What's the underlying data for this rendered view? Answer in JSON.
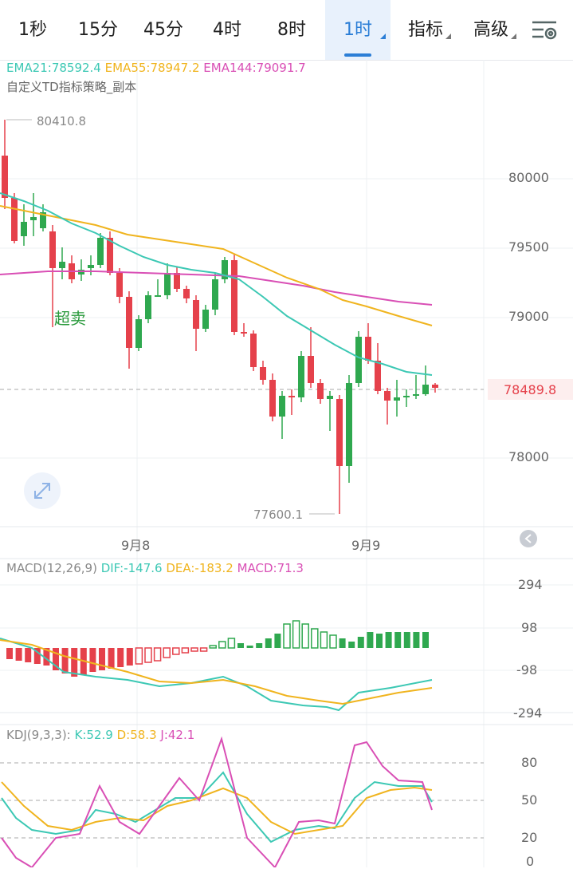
{
  "tabs": [
    {
      "label": "1秒",
      "active": false,
      "dropdown": false
    },
    {
      "label": "15分",
      "active": false,
      "dropdown": false
    },
    {
      "label": "45分",
      "active": false,
      "dropdown": false
    },
    {
      "label": "4时",
      "active": false,
      "dropdown": false
    },
    {
      "label": "8时",
      "active": false,
      "dropdown": false
    },
    {
      "label": "1时",
      "active": true,
      "dropdown": true
    },
    {
      "label": "指标",
      "active": false,
      "dropdown": true
    },
    {
      "label": "高级",
      "active": false,
      "dropdown": true
    }
  ],
  "settings_icon": "settings-sliders-icon",
  "main_chart": {
    "ema21": "EMA21:78592.4",
    "ema55": "EMA55:78947.2",
    "ema144": "EMA144:79091.7",
    "strategy": "自定义TD指标策略_副本",
    "high_label": "80410.8",
    "low_label": "77600.1",
    "oversold_label": "超卖",
    "current_price": "78489.8",
    "y_ticks": [
      "80000",
      "79500",
      "79000",
      "78000"
    ],
    "x_ticks": [
      "9月8",
      "9月9"
    ]
  },
  "macd": {
    "title": "MACD(12,26,9)",
    "dif": "DIF:-147.6",
    "dea": "DEA:-183.2",
    "macd": "MACD:71.3",
    "y_ticks": [
      "294",
      "98",
      "-98",
      "-294"
    ]
  },
  "kdj": {
    "title": "KDJ(9,3,3):",
    "k": "K:52.9",
    "d": "D:58.3",
    "j": "J:42.1",
    "y_ticks": [
      "80",
      "50",
      "20",
      "0"
    ]
  },
  "colors": {
    "up": "#2fa84f",
    "down": "#e5414b",
    "ema21": "#3cc8b4",
    "ema55": "#f0b41e",
    "ema144": "#d94fb5",
    "accent": "#2b7ed6"
  },
  "chart_data": [
    {
      "type": "candlestick",
      "title": "",
      "ylim": [
        77500,
        80700
      ],
      "ema21_last": 78592.4,
      "ema55_last": 78947.2,
      "ema144_last": 79091.7,
      "high": 80410.8,
      "low": 77600.1,
      "current": 78489.8
    },
    {
      "type": "bar+line",
      "title": "MACD(12,26,9)",
      "ylim": [
        -294,
        294
      ],
      "dif_last": -147.6,
      "dea_last": -183.2,
      "macd_last": 71.3
    },
    {
      "type": "line",
      "title": "KDJ(9,3,3)",
      "ylim": [
        0,
        100
      ],
      "k_last": 52.9,
      "d_last": 58.3,
      "j_last": 42.1
    }
  ]
}
